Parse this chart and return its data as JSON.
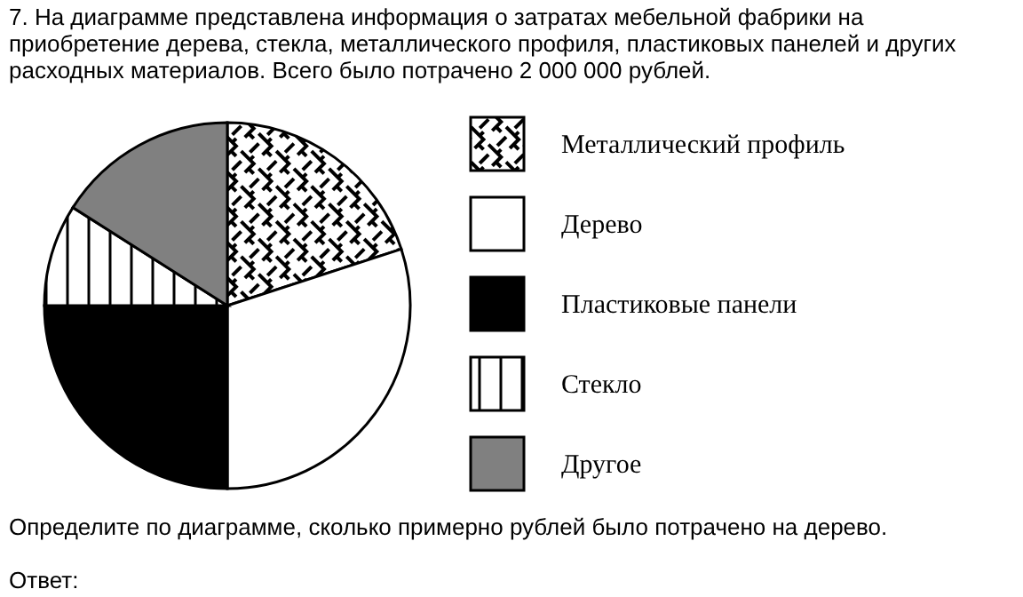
{
  "chart_data": {
    "type": "pie",
    "title": "7. На диаграмме представлена информация о затратах мебельной фабрики на приобретение дерева, стекла, металлического профиля, пластиковых панелей и других расходных материалов. Всего было потрачено 2 000 000 рублей.",
    "categories": [
      "Металлический профиль",
      "Дерево",
      "Пластиковые панели",
      "Стекло",
      "Другое"
    ],
    "values": [
      20,
      30,
      25,
      9,
      16
    ],
    "colors": [
      "#ffffff",
      "#ffffff",
      "#000000",
      "#ffffff",
      "#808080"
    ],
    "legend": "right",
    "annotations": [
      "Определите по диаграмме, сколько примерно рублей было потрачено на дерево.",
      "Ответ:"
    ]
  }
}
